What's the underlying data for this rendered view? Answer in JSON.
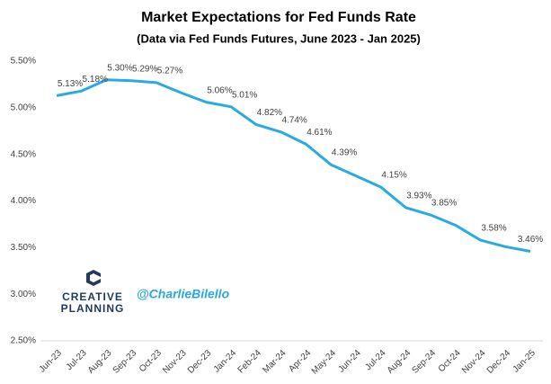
{
  "chart_data": {
    "type": "line",
    "title": "Market Expectations for Fed Funds Rate",
    "subtitle": "(Data via Fed Funds Futures, June 2023 - Jan 2025)",
    "categories": [
      "Jun-23",
      "Jul-23",
      "Aug-23",
      "Sep-23",
      "Oct-23",
      "Nov-23",
      "Dec-23",
      "Jan-24",
      "Feb-24",
      "Mar-24",
      "Apr-24",
      "May-24",
      "Jun-24",
      "Jul-24",
      "Aug-24",
      "Sep-24",
      "Oct-24",
      "Nov-24",
      "Dec-24",
      "Jan-25"
    ],
    "values": [
      5.13,
      5.18,
      5.3,
      5.29,
      5.27,
      5.16,
      5.06,
      5.01,
      4.82,
      4.74,
      4.61,
      4.39,
      4.27,
      4.15,
      3.93,
      3.85,
      3.74,
      3.58,
      3.51,
      3.46
    ],
    "value_labels": [
      "5.13%",
      "5.18%",
      "5.30%",
      "5.29%",
      "5.27%",
      null,
      "5.06%",
      "5.01%",
      "4.82%",
      "4.74%",
      "4.61%",
      "4.39%",
      null,
      "4.15%",
      "3.93%",
      "3.85%",
      null,
      "3.58%",
      null,
      "3.46%"
    ],
    "color": "#29abe2",
    "ylim": [
      2.5,
      5.5
    ],
    "yticks": [
      {
        "value": 2.5,
        "label": "2.50%"
      },
      {
        "value": 3.0,
        "label": "3.00%"
      },
      {
        "value": 3.5,
        "label": "3.50%"
      },
      {
        "value": 4.0,
        "label": "4.00%"
      },
      {
        "value": 4.5,
        "label": "4.50%"
      },
      {
        "value": 5.0,
        "label": "5.00%"
      },
      {
        "value": 5.5,
        "label": "5.50%"
      }
    ],
    "grid": false,
    "annotations": [
      "CREATIVE",
      "PLANNING",
      "@CharlieBilello"
    ]
  }
}
